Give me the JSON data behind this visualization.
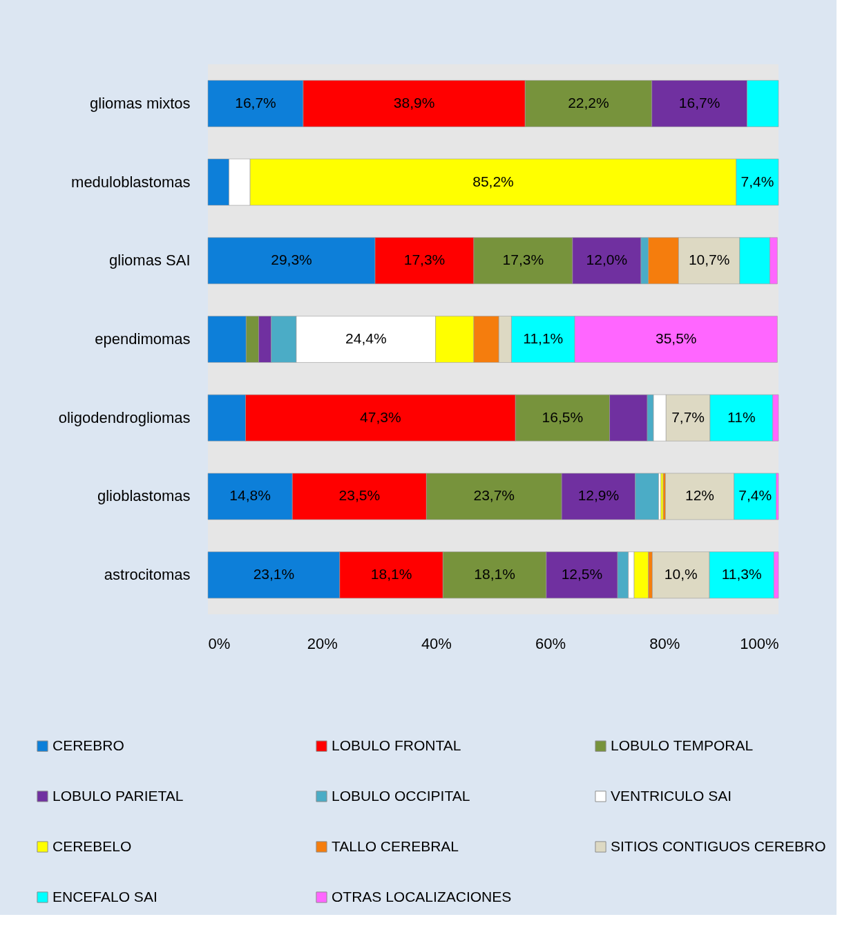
{
  "chart_data": {
    "type": "bar",
    "orientation": "horizontal",
    "stacked": true,
    "legend": "bottom",
    "categories": [
      "gliomas mixtos",
      "meduloblastomas",
      "gliomas SAI",
      "ependimomas",
      "oligodendrogliomas",
      "glioblastomas",
      "astrocitomas"
    ],
    "xlim": [
      0,
      100
    ],
    "xticks": [
      {
        "value": 0,
        "label": "0%"
      },
      {
        "value": 20,
        "label": "20%"
      },
      {
        "value": 40,
        "label": "40%"
      },
      {
        "value": 60,
        "label": "60%"
      },
      {
        "value": 80,
        "label": "80%"
      },
      {
        "value": 100,
        "label": "100%"
      }
    ],
    "series": [
      {
        "name": "CEREBRO",
        "color": "#0d7fd9",
        "values": [
          16.7,
          3.7,
          29.3,
          6.7,
          6.6,
          14.8,
          23.1
        ],
        "value_labels": [
          "16,7%",
          null,
          "29,3%",
          null,
          null,
          "14,8%",
          "23,1%"
        ]
      },
      {
        "name": "LOBULO FRONTAL",
        "color": "#ff0000",
        "values": [
          38.9,
          null,
          17.3,
          null,
          47.3,
          23.5,
          18.1
        ],
        "value_labels": [
          "38,9%",
          null,
          "17,3%",
          null,
          "47,3%",
          "23,5%",
          "18,1%"
        ]
      },
      {
        "name": "LOBULO TEMPORAL",
        "color": "#77933c",
        "values": [
          22.2,
          null,
          17.3,
          2.2,
          16.5,
          23.7,
          18.1
        ],
        "value_labels": [
          "22,2%",
          null,
          "17,3%",
          null,
          "16,5%",
          "23,7%",
          "18,1%"
        ]
      },
      {
        "name": "LOBULO PARIETAL",
        "color": "#7030a0",
        "values": [
          16.7,
          null,
          12.0,
          2.2,
          6.6,
          12.9,
          12.5
        ],
        "value_labels": [
          "16,7%",
          null,
          "12,0%",
          null,
          null,
          "12,9%",
          "12,5%"
        ]
      },
      {
        "name": "LOBULO OCCIPITAL",
        "color": "#4bacc6",
        "values": [
          null,
          null,
          1.3,
          4.4,
          1.1,
          4.1,
          1.9
        ]
      },
      {
        "name": "VENTRICULO SAI",
        "color": "#ffffff",
        "values": [
          null,
          3.7,
          null,
          24.4,
          2.2,
          0.4,
          1.0
        ],
        "value_labels": [
          null,
          null,
          null,
          "24,4%",
          null,
          null,
          null
        ]
      },
      {
        "name": "CEREBELO",
        "color": "#ffff00",
        "values": [
          null,
          85.2,
          null,
          6.7,
          null,
          0.4,
          2.5
        ],
        "value_labels": [
          null,
          "85,2%",
          null,
          null,
          null,
          null,
          null
        ]
      },
      {
        "name": "TALLO CEREBRAL",
        "color": "#f57d0d",
        "values": [
          null,
          null,
          5.3,
          4.4,
          null,
          0.4,
          0.7
        ]
      },
      {
        "name": "SITIOS CONTIGUOS CEREBRO",
        "color": "#ddd9c3",
        "values": [
          null,
          null,
          10.7,
          2.2,
          7.7,
          12,
          10
        ],
        "value_labels": [
          null,
          null,
          "10,7%",
          null,
          "7,7%",
          "12%",
          "10,%"
        ]
      },
      {
        "name": "ENCEFALO SAI",
        "color": "#00ffff",
        "values": [
          5.5,
          7.4,
          5.3,
          11.1,
          11,
          7.4,
          11.3
        ],
        "value_labels": [
          null,
          "7,4%",
          null,
          "11,1%",
          "11%",
          "7,4%",
          "11,3%"
        ]
      },
      {
        "name": "OTRAS LOCALIZACIONES",
        "color": "#ff66ff",
        "values": [
          null,
          null,
          1.3,
          35.5,
          1.0,
          0.4,
          0.8
        ],
        "value_labels": [
          null,
          null,
          null,
          "35,5%",
          null,
          null,
          null
        ]
      }
    ]
  }
}
